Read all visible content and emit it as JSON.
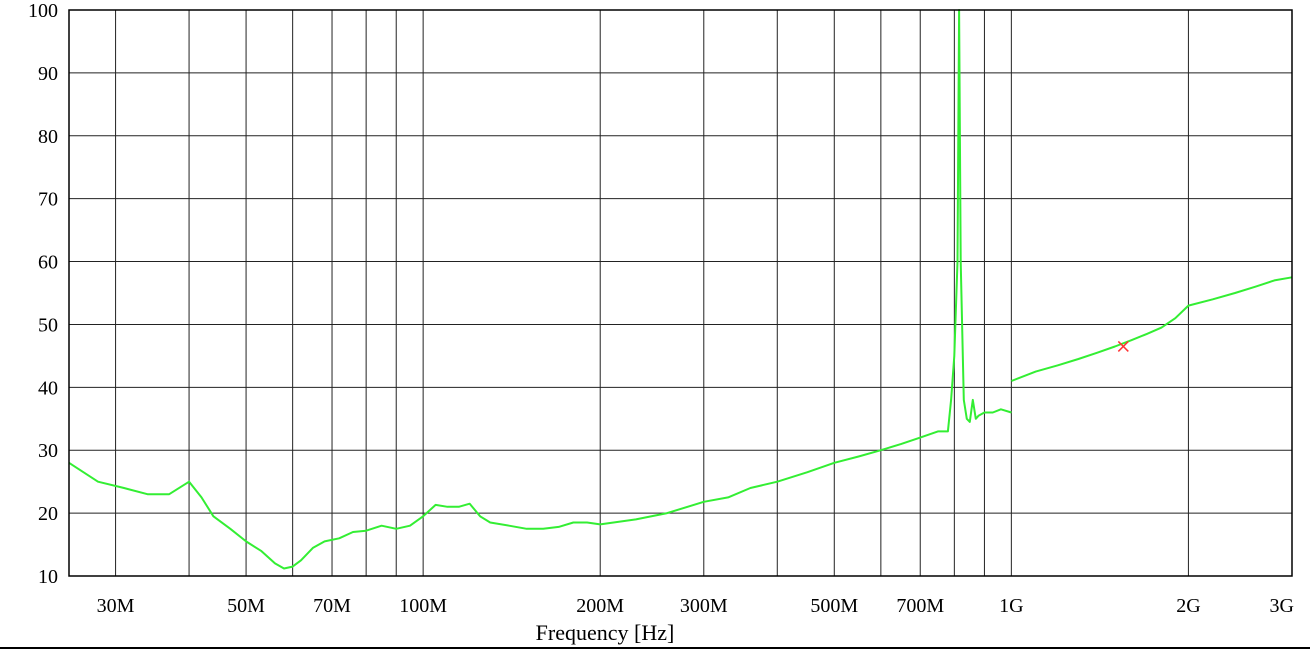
{
  "chart_data": {
    "type": "line",
    "title": "",
    "xlabel": "Frequency [Hz]",
    "ylabel": "",
    "x_scale": "log",
    "xlim": [
      25000000,
      3000000000
    ],
    "ylim": [
      10,
      100
    ],
    "grid": true,
    "x_ticks": [
      {
        "value": 30000000,
        "label": "30M"
      },
      {
        "value": 50000000,
        "label": "50M"
      },
      {
        "value": 70000000,
        "label": "70M"
      },
      {
        "value": 100000000,
        "label": "100M"
      },
      {
        "value": 200000000,
        "label": "200M"
      },
      {
        "value": 300000000,
        "label": "300M"
      },
      {
        "value": 500000000,
        "label": "500M"
      },
      {
        "value": 700000000,
        "label": "700M"
      },
      {
        "value": 1000000000,
        "label": "1G"
      },
      {
        "value": 2000000000,
        "label": "2G"
      },
      {
        "value": 3000000000,
        "label": "3G"
      }
    ],
    "x_minor_grid": [
      40000000,
      60000000,
      80000000,
      90000000,
      400000000,
      600000000,
      800000000,
      900000000
    ],
    "y_ticks": [
      {
        "value": 10,
        "label": "10"
      },
      {
        "value": 20,
        "label": "20"
      },
      {
        "value": 30,
        "label": "30"
      },
      {
        "value": 40,
        "label": "40"
      },
      {
        "value": 50,
        "label": "50"
      },
      {
        "value": 60,
        "label": "60"
      },
      {
        "value": 70,
        "label": "70"
      },
      {
        "value": 80,
        "label": "80"
      },
      {
        "value": 90,
        "label": "90"
      },
      {
        "value": 100,
        "label": "100"
      }
    ],
    "series": [
      {
        "color": "#33ee33",
        "segments": [
          {
            "x": [
              25000000,
              28000000,
              31000000,
              34000000,
              37000000,
              40000000,
              42000000,
              44000000,
              47000000,
              50000000,
              53000000,
              56000000,
              58000000,
              60000000,
              62000000,
              65000000,
              68000000,
              72000000,
              76000000,
              80000000,
              85000000,
              90000000,
              95000000,
              100000000,
              105000000,
              110000000,
              115000000,
              120000000,
              125000000,
              130000000,
              140000000,
              150000000,
              160000000,
              170000000,
              180000000,
              190000000,
              200000000,
              230000000,
              260000000,
              300000000,
              330000000,
              360000000,
              400000000,
              450000000,
              500000000,
              550000000,
              600000000,
              650000000,
              700000000,
              750000000,
              780000000,
              790000000,
              800000000,
              810000000,
              815000000,
              820000000,
              830000000,
              840000000,
              850000000,
              860000000,
              870000000,
              880000000,
              900000000,
              930000000,
              960000000,
              1000000000
            ],
            "y": [
              28,
              25,
              24,
              23,
              23,
              25,
              22.5,
              19.5,
              17.5,
              15.5,
              14,
              12,
              11.2,
              11.5,
              12.5,
              14.5,
              15.5,
              16,
              17,
              17.2,
              18,
              17.5,
              18,
              19.5,
              21.3,
              21,
              21,
              21.5,
              19.5,
              18.5,
              18,
              17.5,
              17.5,
              17.8,
              18.5,
              18.5,
              18.2,
              19,
              20,
              21.8,
              22.5,
              24,
              25,
              26.5,
              28,
              29,
              30,
              31,
              32,
              33,
              33,
              38,
              45,
              60,
              100,
              60,
              38,
              35,
              34.5,
              38,
              35,
              35.5,
              36,
              36,
              36.5,
              36
            ]
          },
          {
            "x": [
              1000000000,
              1100000000,
              1200000000,
              1300000000,
              1400000000,
              1500000000,
              1600000000,
              1700000000,
              1800000000,
              1900000000,
              2000000000,
              2200000000,
              2400000000,
              2600000000,
              2800000000,
              3000000000
            ],
            "y": [
              41,
              42.5,
              43.5,
              44.5,
              45.5,
              46.5,
              47.5,
              48.5,
              49.5,
              51,
              53,
              54,
              55,
              56,
              57,
              57.5
            ]
          }
        ]
      }
    ],
    "markers": [
      {
        "x": 1550000000,
        "y": 46.5,
        "symbol": "x",
        "color": "#ff3333"
      }
    ]
  }
}
